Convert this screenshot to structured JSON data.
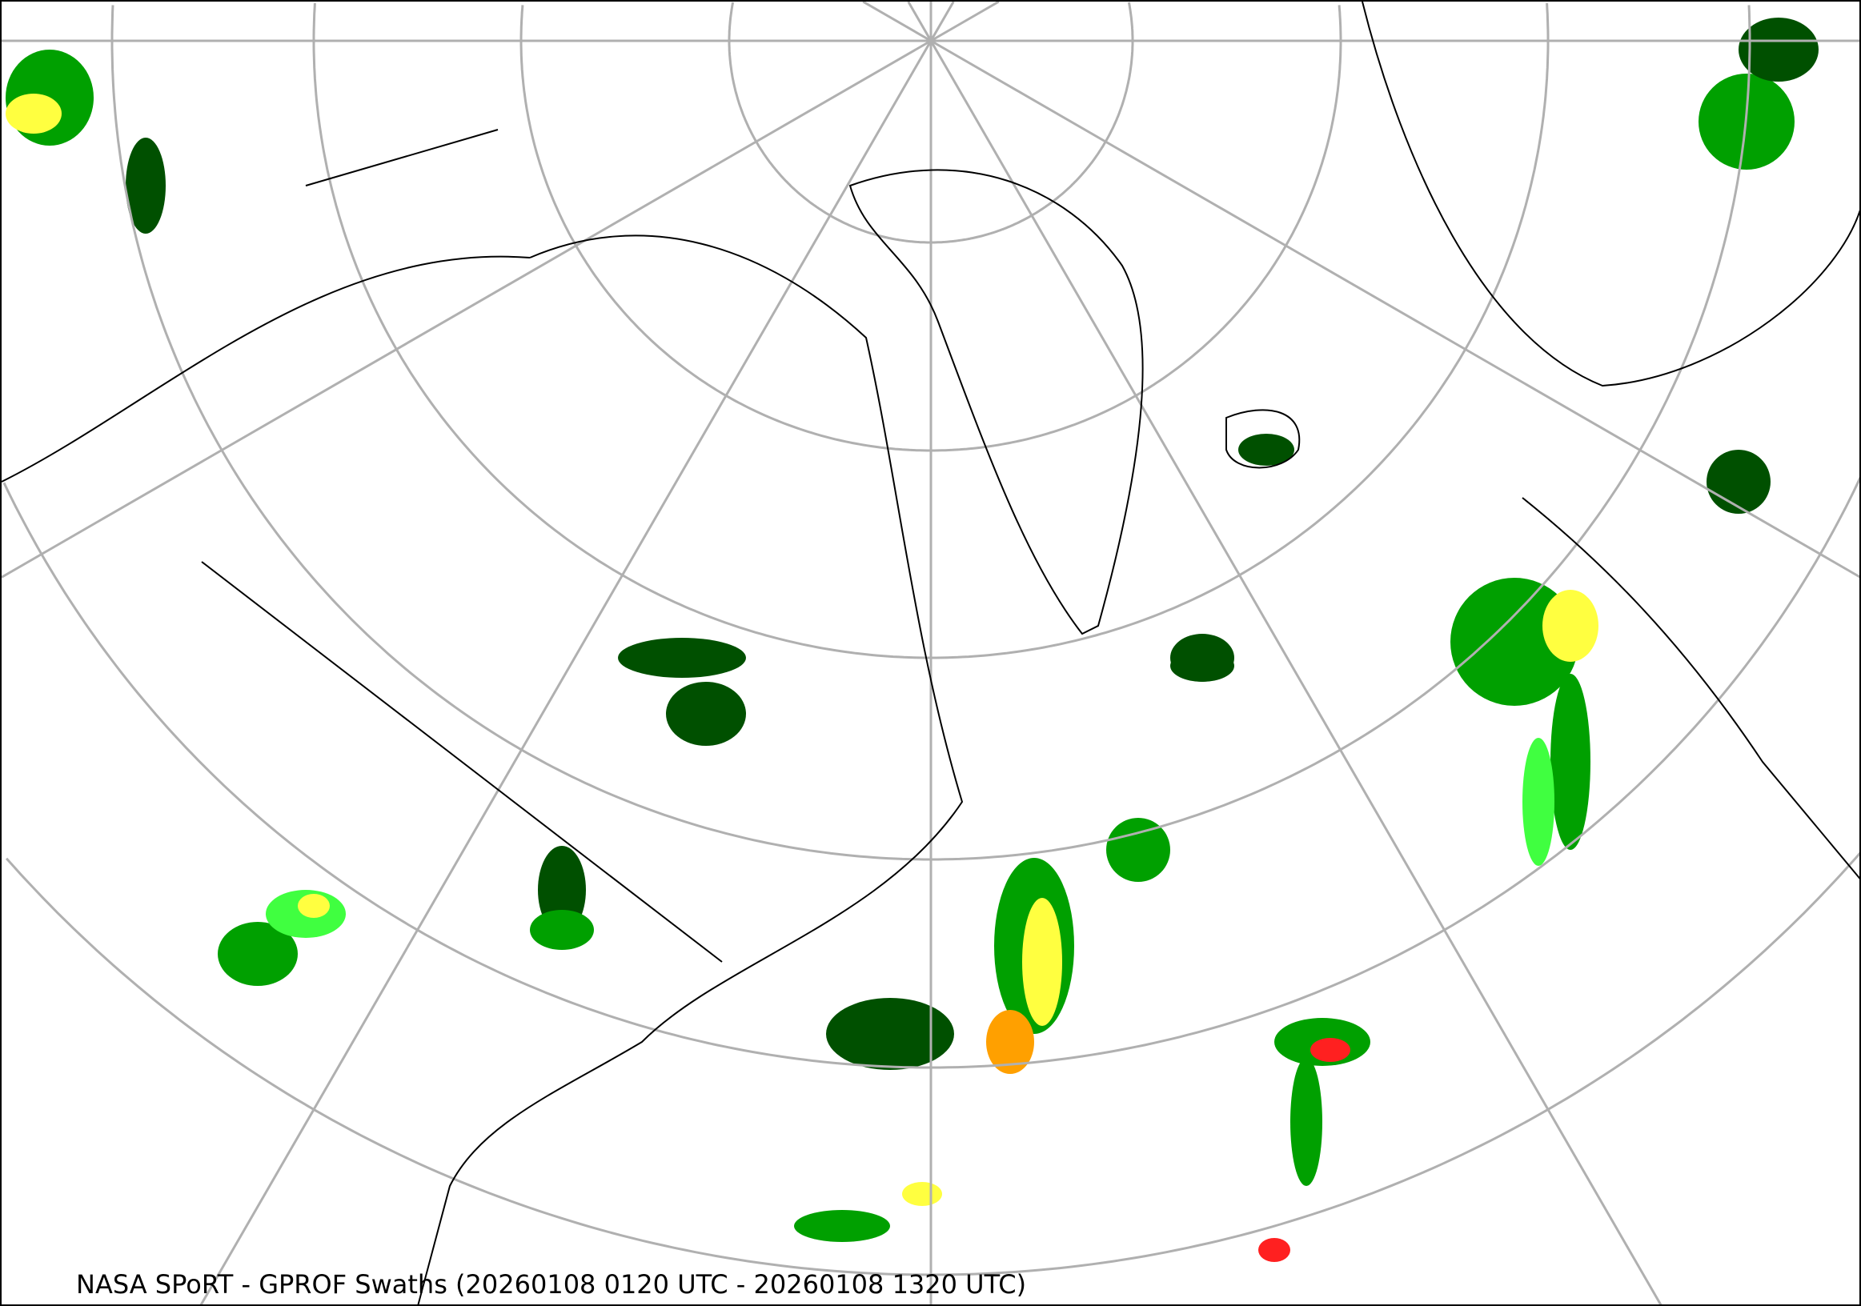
{
  "caption": "NASA SPoRT - GPROF Swaths (20260108 0120 UTC - 20260108 1320 UTC)",
  "colors": {
    "gridline": "#b0b0b0",
    "coastline": "#000000",
    "precip_light": "#005000",
    "precip_moderate": "#00a000",
    "precip_heavy": "#40ff40",
    "precip_yellow": "#ffff40",
    "precip_orange": "#ffa000",
    "precip_red": "#ff2020"
  },
  "projection": "north polar stereographic",
  "icons": []
}
